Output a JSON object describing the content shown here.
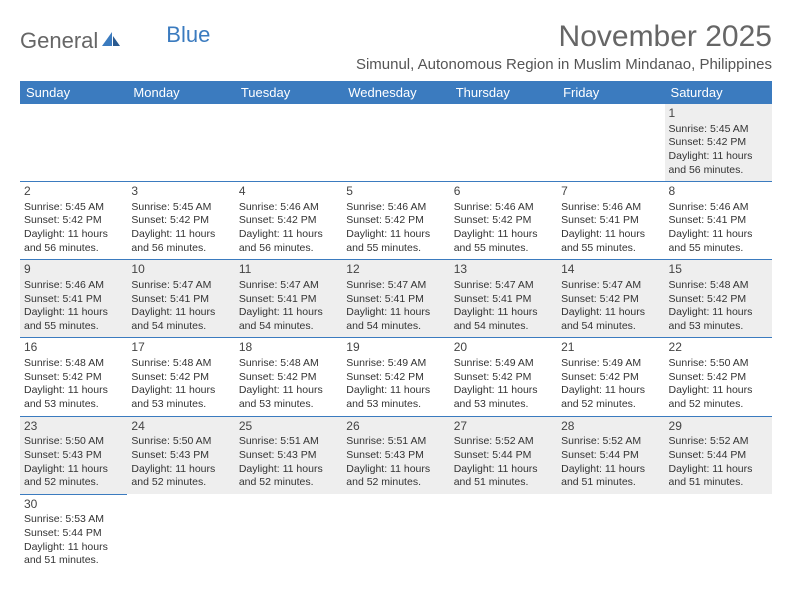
{
  "logo": {
    "part1": "General",
    "part2": "Blue"
  },
  "title": "November 2025",
  "subtitle": "Simunul, Autonomous Region in Muslim Mindanao, Philippines",
  "colors": {
    "header_bg": "#3b7bbf",
    "header_text": "#ffffff",
    "row_alt_bg": "#eeeeee",
    "border": "#3b7bbf",
    "title_color": "#666666",
    "text_color": "#333333"
  },
  "weekdays": [
    "Sunday",
    "Monday",
    "Tuesday",
    "Wednesday",
    "Thursday",
    "Friday",
    "Saturday"
  ],
  "weeks": [
    [
      null,
      null,
      null,
      null,
      null,
      null,
      {
        "n": "1",
        "sr": "5:45 AM",
        "ss": "5:42 PM",
        "dh": "11",
        "dm": "56"
      }
    ],
    [
      {
        "n": "2",
        "sr": "5:45 AM",
        "ss": "5:42 PM",
        "dh": "11",
        "dm": "56"
      },
      {
        "n": "3",
        "sr": "5:45 AM",
        "ss": "5:42 PM",
        "dh": "11",
        "dm": "56"
      },
      {
        "n": "4",
        "sr": "5:46 AM",
        "ss": "5:42 PM",
        "dh": "11",
        "dm": "56"
      },
      {
        "n": "5",
        "sr": "5:46 AM",
        "ss": "5:42 PM",
        "dh": "11",
        "dm": "55"
      },
      {
        "n": "6",
        "sr": "5:46 AM",
        "ss": "5:42 PM",
        "dh": "11",
        "dm": "55"
      },
      {
        "n": "7",
        "sr": "5:46 AM",
        "ss": "5:41 PM",
        "dh": "11",
        "dm": "55"
      },
      {
        "n": "8",
        "sr": "5:46 AM",
        "ss": "5:41 PM",
        "dh": "11",
        "dm": "55"
      }
    ],
    [
      {
        "n": "9",
        "sr": "5:46 AM",
        "ss": "5:41 PM",
        "dh": "11",
        "dm": "55"
      },
      {
        "n": "10",
        "sr": "5:47 AM",
        "ss": "5:41 PM",
        "dh": "11",
        "dm": "54"
      },
      {
        "n": "11",
        "sr": "5:47 AM",
        "ss": "5:41 PM",
        "dh": "11",
        "dm": "54"
      },
      {
        "n": "12",
        "sr": "5:47 AM",
        "ss": "5:41 PM",
        "dh": "11",
        "dm": "54"
      },
      {
        "n": "13",
        "sr": "5:47 AM",
        "ss": "5:41 PM",
        "dh": "11",
        "dm": "54"
      },
      {
        "n": "14",
        "sr": "5:47 AM",
        "ss": "5:42 PM",
        "dh": "11",
        "dm": "54"
      },
      {
        "n": "15",
        "sr": "5:48 AM",
        "ss": "5:42 PM",
        "dh": "11",
        "dm": "53"
      }
    ],
    [
      {
        "n": "16",
        "sr": "5:48 AM",
        "ss": "5:42 PM",
        "dh": "11",
        "dm": "53"
      },
      {
        "n": "17",
        "sr": "5:48 AM",
        "ss": "5:42 PM",
        "dh": "11",
        "dm": "53"
      },
      {
        "n": "18",
        "sr": "5:48 AM",
        "ss": "5:42 PM",
        "dh": "11",
        "dm": "53"
      },
      {
        "n": "19",
        "sr": "5:49 AM",
        "ss": "5:42 PM",
        "dh": "11",
        "dm": "53"
      },
      {
        "n": "20",
        "sr": "5:49 AM",
        "ss": "5:42 PM",
        "dh": "11",
        "dm": "53"
      },
      {
        "n": "21",
        "sr": "5:49 AM",
        "ss": "5:42 PM",
        "dh": "11",
        "dm": "52"
      },
      {
        "n": "22",
        "sr": "5:50 AM",
        "ss": "5:42 PM",
        "dh": "11",
        "dm": "52"
      }
    ],
    [
      {
        "n": "23",
        "sr": "5:50 AM",
        "ss": "5:43 PM",
        "dh": "11",
        "dm": "52"
      },
      {
        "n": "24",
        "sr": "5:50 AM",
        "ss": "5:43 PM",
        "dh": "11",
        "dm": "52"
      },
      {
        "n": "25",
        "sr": "5:51 AM",
        "ss": "5:43 PM",
        "dh": "11",
        "dm": "52"
      },
      {
        "n": "26",
        "sr": "5:51 AM",
        "ss": "5:43 PM",
        "dh": "11",
        "dm": "52"
      },
      {
        "n": "27",
        "sr": "5:52 AM",
        "ss": "5:44 PM",
        "dh": "11",
        "dm": "51"
      },
      {
        "n": "28",
        "sr": "5:52 AM",
        "ss": "5:44 PM",
        "dh": "11",
        "dm": "51"
      },
      {
        "n": "29",
        "sr": "5:52 AM",
        "ss": "5:44 PM",
        "dh": "11",
        "dm": "51"
      }
    ],
    [
      {
        "n": "30",
        "sr": "5:53 AM",
        "ss": "5:44 PM",
        "dh": "11",
        "dm": "51"
      },
      null,
      null,
      null,
      null,
      null,
      null
    ]
  ],
  "labels": {
    "sunrise": "Sunrise: ",
    "sunset": "Sunset: ",
    "daylight_pre": "Daylight: ",
    "hours": " hours",
    "and": "and ",
    "minutes": " minutes."
  }
}
